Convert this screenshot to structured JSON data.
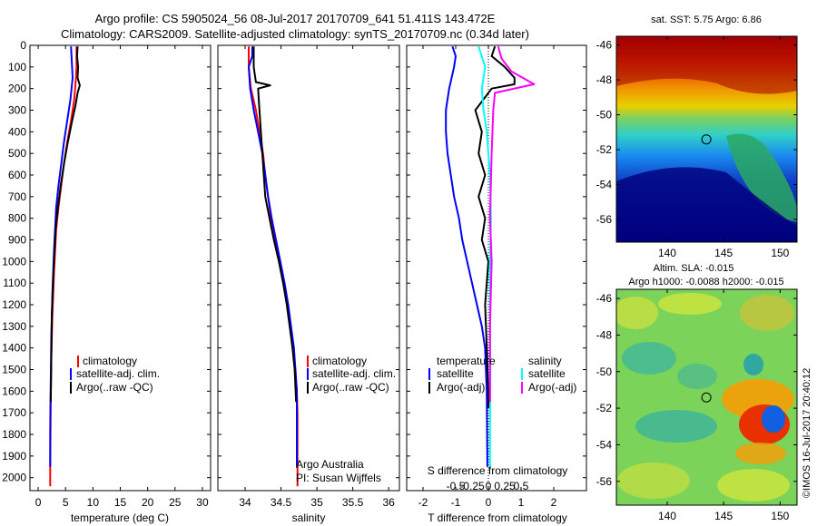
{
  "header": {
    "title_line1": "Argo profile: CS 5905024_56 08-Jul-2017 20170709_641 51.411S 143.472E",
    "title_line2": "Climatology: CARS2009. Satellite-adjusted climatology: synTS_20170709.nc (0.34d later)"
  },
  "colors": {
    "climatology": "#ff0000",
    "satellite": "#0000ff",
    "argo": "#000000",
    "sal_satellite": "#00ffff",
    "sal_argo": "#ff00ff"
  },
  "chart_data": [
    {
      "type": "line",
      "id": "temperature",
      "xlabel": "temperature (deg C)",
      "ylabel": "",
      "xlim": [
        -1.5,
        31.5
      ],
      "ylim": [
        2060,
        0
      ],
      "xticks": [
        0,
        5,
        10,
        15,
        20,
        25,
        30
      ],
      "yticks": [
        0,
        100,
        200,
        300,
        400,
        500,
        600,
        700,
        800,
        900,
        1000,
        1100,
        1200,
        1300,
        1400,
        1500,
        1600,
        1700,
        1800,
        1900,
        2000
      ],
      "legend": [
        "climatology",
        "satellite-adj. clim.",
        "Argo(..raw -QC)"
      ],
      "series": [
        {
          "name": "climatology",
          "color": "#ff0000",
          "x": [
            7.0,
            7.0,
            6.9,
            6.6,
            6.0,
            5.3,
            4.7,
            4.2,
            3.7,
            3.3,
            3.1,
            2.9,
            2.75,
            2.6,
            2.5,
            2.4,
            2.35,
            2.3,
            2.25,
            2.2,
            2.2
          ],
          "y": [
            5,
            100,
            150,
            250,
            350,
            450,
            550,
            650,
            750,
            850,
            950,
            1050,
            1150,
            1250,
            1350,
            1450,
            1550,
            1650,
            1800,
            1950,
            2040
          ]
        },
        {
          "name": "satellite-adj. clim.",
          "color": "#0000ff",
          "x": [
            6.0,
            6.1,
            6.2,
            6.3,
            5.9,
            5.3,
            4.7,
            4.2,
            3.7,
            3.3,
            3.1,
            2.9,
            2.75,
            2.6,
            2.5,
            2.4,
            2.35,
            2.3,
            2.25,
            2.2,
            2.2
          ],
          "y": [
            5,
            50,
            100,
            150,
            250,
            350,
            450,
            550,
            650,
            750,
            850,
            950,
            1050,
            1150,
            1250,
            1350,
            1450,
            1550,
            1650,
            1800,
            1950
          ]
        },
        {
          "name": "Argo(..raw -QC)",
          "color": "#000000",
          "x": [
            7.2,
            7.1,
            7.3,
            7.2,
            7.6,
            7.2,
            6.8,
            6.2,
            5.4,
            4.7,
            4.1,
            3.6,
            3.2,
            3.0,
            2.8,
            2.65,
            2.5,
            2.45,
            2.4,
            2.35,
            2.3
          ],
          "y": [
            5,
            50,
            100,
            150,
            185,
            220,
            280,
            350,
            450,
            550,
            650,
            750,
            850,
            950,
            1050,
            1150,
            1250,
            1350,
            1450,
            1550,
            1650
          ]
        }
      ]
    },
    {
      "type": "line",
      "id": "salinity",
      "xlabel": "salinity",
      "xlim": [
        33.62,
        36.15
      ],
      "ylim": [
        2060,
        0
      ],
      "xticks": [
        34,
        34.5,
        35,
        35.5,
        36
      ],
      "legend": [
        "climatology",
        "satellite-adj. clim.",
        "Argo(..raw -QC)"
      ],
      "annotation": [
        "Argo Australia",
        "PI: Susan Wijffels"
      ],
      "series": [
        {
          "name": "climatology",
          "color": "#ff0000",
          "x": [
            34.05,
            34.05,
            34.08,
            34.15,
            34.2,
            34.25,
            34.28,
            34.32,
            34.36,
            34.42,
            34.48,
            34.54,
            34.59,
            34.63,
            34.67,
            34.7,
            34.72,
            34.73,
            34.73,
            34.73
          ],
          "y": [
            5,
            100,
            200,
            300,
            400,
            500,
            600,
            700,
            800,
            900,
            1000,
            1100,
            1200,
            1300,
            1400,
            1500,
            1600,
            1700,
            1900,
            2040
          ]
        },
        {
          "name": "satellite-adj. clim.",
          "color": "#0000ff",
          "x": [
            34.1,
            34.1,
            34.05,
            34.07,
            34.12,
            34.18,
            34.24,
            34.28,
            34.32,
            34.37,
            34.43,
            34.49,
            34.55,
            34.6,
            34.64,
            34.68,
            34.7,
            34.72,
            34.72,
            34.72
          ],
          "y": [
            5,
            50,
            100,
            200,
            300,
            400,
            500,
            600,
            700,
            800,
            900,
            1000,
            1100,
            1200,
            1300,
            1400,
            1500,
            1600,
            1800,
            1950
          ]
        },
        {
          "name": "Argo(..raw -QC)",
          "color": "#000000",
          "x": [
            34.12,
            34.12,
            34.15,
            34.35,
            34.18,
            34.2,
            34.22,
            34.24,
            34.26,
            34.28,
            34.34,
            34.4,
            34.47,
            34.53,
            34.58,
            34.62,
            34.66,
            34.69,
            34.71
          ],
          "y": [
            5,
            100,
            170,
            185,
            200,
            300,
            400,
            500,
            600,
            700,
            800,
            900,
            1000,
            1100,
            1200,
            1300,
            1400,
            1500,
            1650
          ]
        }
      ]
    },
    {
      "type": "line",
      "id": "differences",
      "xlabel": "T difference from climatology",
      "xlabel2": "S difference from climatology",
      "xlim": [
        -2.5,
        3.0
      ],
      "ylim": [
        2060,
        0
      ],
      "xticks": [
        -2,
        -1,
        0,
        1,
        2
      ],
      "xticks2_values": [
        -1,
        -0.5,
        0,
        0.5,
        1
      ],
      "xticks2_labels": [
        "-0.5",
        "-0.25",
        "0",
        "0.25",
        "0.5"
      ],
      "legend_titles": [
        "temperature",
        "salinity"
      ],
      "legend": [
        "satellite",
        "Argo(-adj)",
        "satellite",
        "Argo(-adj)"
      ],
      "series": [
        {
          "name": "satellite",
          "color": "#0000ff",
          "x": [
            -1.1,
            -1.0,
            -1.05,
            -1.2,
            -1.3,
            -1.3,
            -1.25,
            -1.15,
            -1.05,
            -0.9,
            -0.8,
            -0.65,
            -0.5,
            -0.35,
            -0.2,
            -0.1,
            -0.05,
            -0.03
          ],
          "y": [
            5,
            50,
            100,
            200,
            300,
            400,
            500,
            600,
            700,
            800,
            900,
            1000,
            1100,
            1200,
            1300,
            1400,
            1600,
            1950
          ]
        },
        {
          "name": "Argo(-adj)",
          "color": "#000000",
          "x": [
            0.2,
            0.1,
            0.5,
            0.8,
            0.8,
            0.1,
            -0.4,
            -0.2,
            -0.3,
            -0.1,
            -0.3,
            -0.1,
            -0.2,
            0.0,
            -0.1,
            -0.05,
            0.0,
            0.0
          ],
          "y": [
            5,
            50,
            100,
            150,
            180,
            200,
            300,
            400,
            500,
            600,
            700,
            800,
            900,
            1000,
            1200,
            1400,
            1600,
            1680
          ]
        },
        {
          "name": "satellite",
          "color": "#00ffff",
          "x": [
            -0.3,
            -0.1,
            -0.2,
            -0.15,
            -0.05,
            0.0,
            0.05,
            0.08,
            0.05,
            0.05,
            0.06,
            0.05,
            0.05
          ],
          "y": [
            5,
            100,
            200,
            300,
            400,
            500,
            600,
            800,
            1000,
            1200,
            1500,
            1800,
            1950
          ]
        },
        {
          "name": "Argo(-adj)",
          "color": "#ff00ff",
          "x": [
            0.3,
            0.4,
            0.7,
            1.4,
            0.2,
            0.15,
            0.1,
            0.05,
            0.1,
            0.05,
            0.05
          ],
          "y": [
            5,
            60,
            120,
            180,
            220,
            300,
            500,
            800,
            1000,
            1300,
            1650
          ]
        }
      ]
    },
    {
      "type": "heatmap",
      "id": "sst_map",
      "title": "sat. SST: 5.75 Argo: 6.86",
      "xlim": [
        135.5,
        151.5
      ],
      "ylim": [
        -57.3,
        -45.5
      ],
      "xticks": [
        140,
        145,
        150
      ],
      "yticks": [
        -46,
        -48,
        -50,
        -52,
        -54,
        -56
      ],
      "marker": {
        "lon": 143.47,
        "lat": -51.41
      }
    },
    {
      "type": "heatmap",
      "id": "sla_map",
      "title_line1": "Altim. SLA: -0.015",
      "title_line2": "Argo h1000: -0.0088 h2000: -0.015",
      "xlim": [
        135.5,
        151.5
      ],
      "ylim": [
        -57.3,
        -45.5
      ],
      "xticks": [
        140,
        145,
        150
      ],
      "yticks": [
        -46,
        -48,
        -50,
        -52,
        -54,
        -56
      ],
      "marker": {
        "lon": 143.47,
        "lat": -51.41
      }
    }
  ],
  "watermark": "©IMOS 16-Jul-2017 20:40:12"
}
